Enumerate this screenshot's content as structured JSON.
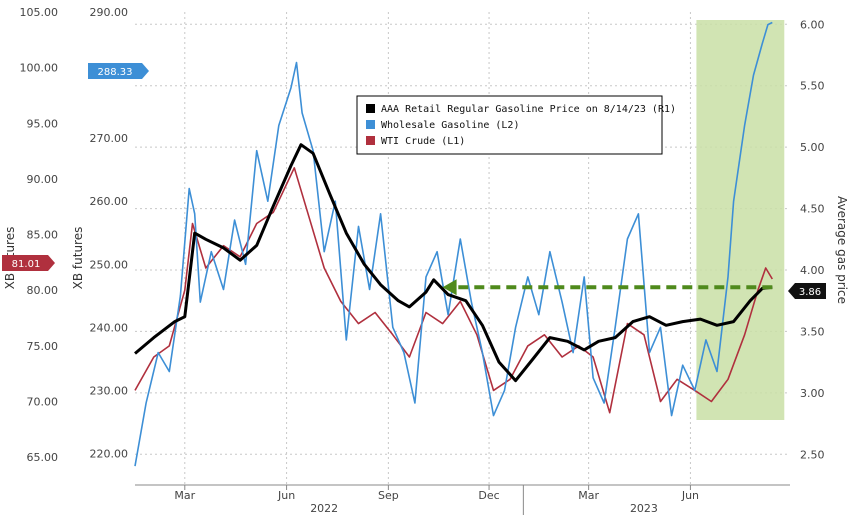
{
  "chart_data": {
    "type": "line",
    "legend": {
      "placement": "top-center",
      "entries": [
        {
          "label": "AAA Retail Regular Gasoline Price on 8/14/23 (R1)",
          "color": "#000000"
        },
        {
          "label": "Wholesale Gasoline (L2)",
          "color": "#3d8fd6"
        },
        {
          "label": "WTI Crude (L1)",
          "color": "#b0303e"
        }
      ]
    },
    "axes": {
      "left_outer": {
        "label": "XB futures",
        "ticks": [
          "105.00",
          "100.00",
          "95.00",
          "90.00",
          "85.00",
          "80.00",
          "75.00",
          "70.00",
          "65.00"
        ],
        "range": [
          62.5,
          105
        ]
      },
      "left_inner": {
        "label": "XB futures",
        "ticks": [
          "290.00",
          "280.00",
          "270.00",
          "260.00",
          "250.00",
          "240.00",
          "230.00",
          "220.00"
        ],
        "range": [
          215,
          290
        ]
      },
      "right": {
        "label": "Average gas price",
        "ticks": [
          "6.00",
          "5.50",
          "5.00",
          "4.50",
          "4.00",
          "3.50",
          "3.00",
          "2.50"
        ],
        "range": [
          2.25,
          6.1
        ]
      },
      "x": {
        "month_ticks": [
          "Mar",
          "Jun",
          "Sep",
          "Dec",
          "Mar",
          "Jun"
        ],
        "year_labels": [
          "2022",
          "2023"
        ]
      }
    },
    "grid": true,
    "tags": [
      {
        "text": "288.33",
        "color": "#3d8fd6"
      },
      {
        "text": "81.01",
        "color": "#b0303e"
      },
      {
        "text": "3.86",
        "color": "#111111"
      }
    ],
    "highlight": {
      "from": "2023-06-01",
      "to": "2023-08-14",
      "color": "#c9dfa6"
    },
    "arrow": {
      "from_date": "2023-08-14",
      "to_date": "2022-10-20",
      "value": 3.86,
      "color": "#4f8a1c"
    },
    "x_range": [
      "2022-01-15",
      "2023-08-30"
    ],
    "series": [
      {
        "name": "AAA Retail Regular Gasoline Price on 8/14/23 (R1)",
        "axis": "right",
        "color": "#000000",
        "points": [
          [
            "2022-01-15",
            3.32
          ],
          [
            "2022-02-01",
            3.45
          ],
          [
            "2022-02-20",
            3.58
          ],
          [
            "2022-03-01",
            3.62
          ],
          [
            "2022-03-10",
            4.3
          ],
          [
            "2022-03-20",
            4.25
          ],
          [
            "2022-04-05",
            4.18
          ],
          [
            "2022-04-20",
            4.08
          ],
          [
            "2022-05-05",
            4.2
          ],
          [
            "2022-05-20",
            4.52
          ],
          [
            "2022-06-05",
            4.85
          ],
          [
            "2022-06-14",
            5.02
          ],
          [
            "2022-06-25",
            4.95
          ],
          [
            "2022-07-10",
            4.62
          ],
          [
            "2022-07-25",
            4.3
          ],
          [
            "2022-08-10",
            4.05
          ],
          [
            "2022-08-25",
            3.88
          ],
          [
            "2022-09-10",
            3.75
          ],
          [
            "2022-09-20",
            3.7
          ],
          [
            "2022-10-05",
            3.82
          ],
          [
            "2022-10-12",
            3.92
          ],
          [
            "2022-10-25",
            3.8
          ],
          [
            "2022-11-10",
            3.75
          ],
          [
            "2022-11-25",
            3.55
          ],
          [
            "2022-12-10",
            3.25
          ],
          [
            "2022-12-25",
            3.1
          ],
          [
            "2023-01-10",
            3.28
          ],
          [
            "2023-01-25",
            3.45
          ],
          [
            "2023-02-10",
            3.42
          ],
          [
            "2023-02-25",
            3.35
          ],
          [
            "2023-03-10",
            3.42
          ],
          [
            "2023-03-25",
            3.45
          ],
          [
            "2023-04-10",
            3.58
          ],
          [
            "2023-04-25",
            3.62
          ],
          [
            "2023-05-10",
            3.55
          ],
          [
            "2023-05-25",
            3.58
          ],
          [
            "2023-06-10",
            3.6
          ],
          [
            "2023-06-25",
            3.55
          ],
          [
            "2023-07-10",
            3.58
          ],
          [
            "2023-07-25",
            3.75
          ],
          [
            "2023-08-05",
            3.85
          ],
          [
            "2023-08-14",
            3.86
          ]
        ]
      },
      {
        "name": "Wholesale Gasoline (L2)",
        "axis": "left_inner",
        "color": "#3d8fd6",
        "points": [
          [
            "2022-01-15",
            218
          ],
          [
            "2022-01-25",
            228
          ],
          [
            "2022-02-05",
            236
          ],
          [
            "2022-02-15",
            233
          ],
          [
            "2022-02-25",
            245
          ],
          [
            "2022-03-05",
            262
          ],
          [
            "2022-03-10",
            258
          ],
          [
            "2022-03-15",
            244
          ],
          [
            "2022-03-25",
            252
          ],
          [
            "2022-04-05",
            246
          ],
          [
            "2022-04-15",
            257
          ],
          [
            "2022-04-25",
            250
          ],
          [
            "2022-05-05",
            268
          ],
          [
            "2022-05-15",
            260
          ],
          [
            "2022-05-25",
            272
          ],
          [
            "2022-06-05",
            278
          ],
          [
            "2022-06-10",
            282
          ],
          [
            "2022-06-15",
            274
          ],
          [
            "2022-06-25",
            268
          ],
          [
            "2022-07-05",
            252
          ],
          [
            "2022-07-15",
            260
          ],
          [
            "2022-07-25",
            238
          ],
          [
            "2022-08-05",
            256
          ],
          [
            "2022-08-15",
            246
          ],
          [
            "2022-08-25",
            258
          ],
          [
            "2022-09-05",
            240
          ],
          [
            "2022-09-15",
            236
          ],
          [
            "2022-09-25",
            228
          ],
          [
            "2022-10-05",
            248
          ],
          [
            "2022-10-15",
            252
          ],
          [
            "2022-10-25",
            242
          ],
          [
            "2022-11-05",
            254
          ],
          [
            "2022-11-15",
            244
          ],
          [
            "2022-11-25",
            236
          ],
          [
            "2022-12-05",
            226
          ],
          [
            "2022-12-15",
            230
          ],
          [
            "2022-12-25",
            240
          ],
          [
            "2023-01-05",
            248
          ],
          [
            "2023-01-15",
            242
          ],
          [
            "2023-01-25",
            252
          ],
          [
            "2023-02-05",
            244
          ],
          [
            "2023-02-15",
            236
          ],
          [
            "2023-02-25",
            248
          ],
          [
            "2023-03-05",
            232
          ],
          [
            "2023-03-15",
            228
          ],
          [
            "2023-03-25",
            240
          ],
          [
            "2023-04-05",
            254
          ],
          [
            "2023-04-15",
            258
          ],
          [
            "2023-04-25",
            236
          ],
          [
            "2023-05-05",
            240
          ],
          [
            "2023-05-15",
            226
          ],
          [
            "2023-05-25",
            234
          ],
          [
            "2023-06-05",
            230
          ],
          [
            "2023-06-15",
            238
          ],
          [
            "2023-06-25",
            233
          ],
          [
            "2023-07-05",
            248
          ],
          [
            "2023-07-10",
            260
          ],
          [
            "2023-07-20",
            272
          ],
          [
            "2023-07-28",
            280
          ],
          [
            "2023-08-05",
            285
          ],
          [
            "2023-08-10",
            288
          ],
          [
            "2023-08-14",
            288.33
          ]
        ]
      },
      {
        "name": "WTI Crude (L1)",
        "axis": "left_outer",
        "color": "#b0303e",
        "points": [
          [
            "2022-01-15",
            71
          ],
          [
            "2022-02-01",
            74
          ],
          [
            "2022-02-15",
            75
          ],
          [
            "2022-03-01",
            80
          ],
          [
            "2022-03-08",
            86
          ],
          [
            "2022-03-20",
            82
          ],
          [
            "2022-04-05",
            84
          ],
          [
            "2022-04-20",
            83
          ],
          [
            "2022-05-05",
            86
          ],
          [
            "2022-05-20",
            87
          ],
          [
            "2022-06-08",
            91
          ],
          [
            "2022-06-20",
            87
          ],
          [
            "2022-07-05",
            82
          ],
          [
            "2022-07-20",
            79
          ],
          [
            "2022-08-05",
            77
          ],
          [
            "2022-08-20",
            78
          ],
          [
            "2022-09-05",
            76
          ],
          [
            "2022-09-20",
            74
          ],
          [
            "2022-10-05",
            78
          ],
          [
            "2022-10-20",
            77
          ],
          [
            "2022-11-05",
            79
          ],
          [
            "2022-11-20",
            76
          ],
          [
            "2022-12-05",
            71
          ],
          [
            "2022-12-20",
            72
          ],
          [
            "2023-01-05",
            75
          ],
          [
            "2023-01-20",
            76
          ],
          [
            "2023-02-05",
            74
          ],
          [
            "2023-02-20",
            75
          ],
          [
            "2023-03-05",
            74
          ],
          [
            "2023-03-20",
            69
          ],
          [
            "2023-04-05",
            77
          ],
          [
            "2023-04-20",
            76
          ],
          [
            "2023-05-05",
            70
          ],
          [
            "2023-05-20",
            72
          ],
          [
            "2023-06-05",
            71
          ],
          [
            "2023-06-20",
            70
          ],
          [
            "2023-07-05",
            72
          ],
          [
            "2023-07-20",
            76
          ],
          [
            "2023-08-01",
            80
          ],
          [
            "2023-08-08",
            82
          ],
          [
            "2023-08-14",
            81.01
          ]
        ]
      }
    ]
  }
}
